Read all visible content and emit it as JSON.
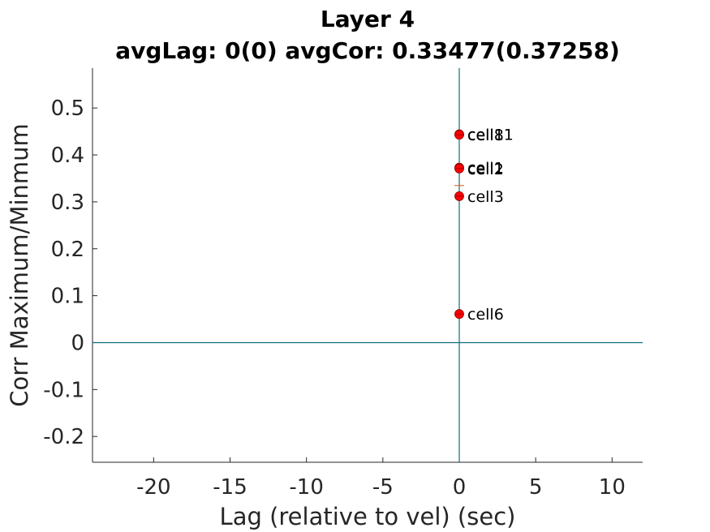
{
  "chart_data": {
    "type": "scatter",
    "title": "Layer 4",
    "subtitle": "avgLag: 0(0) avgCor: 0.33477(0.37258)",
    "xlabel": "Lag (relative to vel) (sec)",
    "ylabel": "Corr Maximum/Minmum",
    "xlim": [
      -24,
      12
    ],
    "ylim": [
      -0.255,
      0.585
    ],
    "xticks": [
      -20,
      -15,
      -10,
      -5,
      0,
      5,
      10
    ],
    "yticks": [
      -0.2,
      -0.1,
      0,
      0.1,
      0.2,
      0.3,
      0.4,
      0.5
    ],
    "xtick_labels": [
      "-20",
      "-15",
      "-10",
      "-5",
      "0",
      "5",
      "10"
    ],
    "ytick_labels": [
      "-0.2",
      "-0.1",
      "0",
      "0.1",
      "0.2",
      "0.3",
      "0.4",
      "0.5"
    ],
    "points": [
      {
        "label": "cell11",
        "x": 0,
        "y": 0.444
      },
      {
        "label": "cell8",
        "x": 0,
        "y": 0.443
      },
      {
        "label": "cell1",
        "x": 0,
        "y": 0.373
      },
      {
        "label": "cell2",
        "x": 0,
        "y": 0.371
      },
      {
        "label": "cell3",
        "x": 0,
        "y": 0.312
      },
      {
        "label": "cell6",
        "x": 0,
        "y": 0.061
      }
    ],
    "mean_marker": {
      "x": 0,
      "y": 0.33477
    },
    "reference_lines": {
      "x": 0,
      "y": 0
    },
    "colors": {
      "points": "#ff0000",
      "reference": "#0e6e7e",
      "mean": "#d95319"
    },
    "grid": false,
    "legend": "none"
  }
}
